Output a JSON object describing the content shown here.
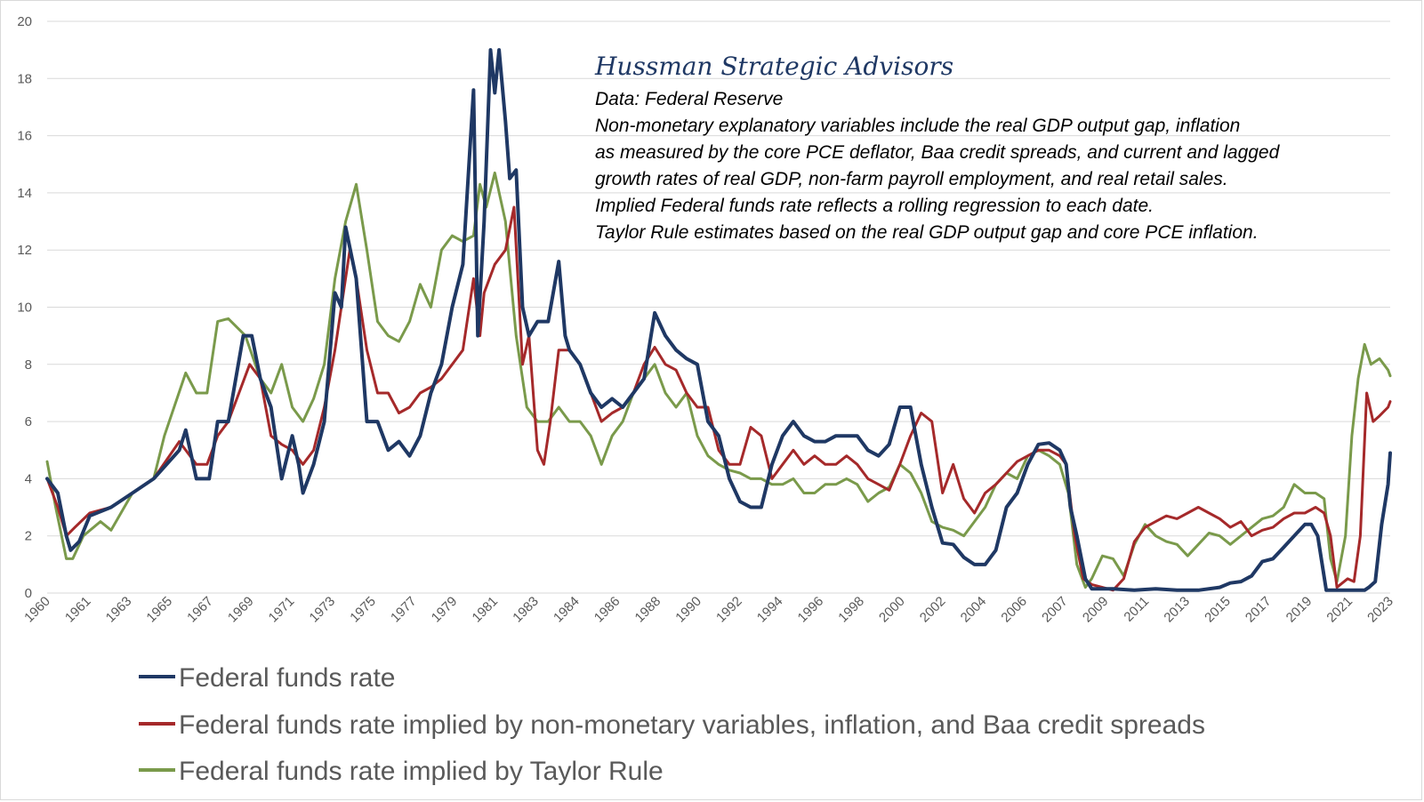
{
  "chart_data": {
    "type": "line",
    "title": "",
    "xlabel": "",
    "ylabel": "",
    "ylim": [
      0,
      20
    ],
    "yticks": [
      0,
      2,
      4,
      6,
      8,
      10,
      12,
      14,
      16,
      18,
      20
    ],
    "xlim": [
      1960,
      2023
    ],
    "xticks": [
      "1960",
      "1961",
      "1963",
      "1965",
      "1967",
      "1969",
      "1971",
      "1973",
      "1975",
      "1977",
      "1979",
      "1981",
      "1983",
      "1984",
      "1986",
      "1988",
      "1990",
      "1992",
      "1994",
      "1996",
      "1998",
      "2000",
      "2002",
      "2004",
      "2006",
      "2007",
      "2009",
      "2011",
      "2013",
      "2015",
      "2017",
      "2019",
      "2021",
      "2023"
    ],
    "grid": true,
    "legend_position": "bottom-left",
    "annotation": {
      "title": "Hussman Strategic Advisors",
      "lines": [
        "Data: Federal Reserve",
        "Non-monetary explanatory variables include the real GDP output gap, inflation",
        "as measured by the core PCE deflator, Baa credit spreads, and current and lagged",
        "growth rates of real GDP, non-farm payroll employment, and real retail sales.",
        "Implied Federal funds rate reflects a rolling regression to each date.",
        "Taylor Rule estimates based on the real GDP output gap and core PCE inflation."
      ]
    },
    "series": [
      {
        "name": "Federal funds rate",
        "color": "#1f3864",
        "x": [
          1960,
          1960.5,
          1960.9,
          1961.1,
          1961.5,
          1962,
          1963,
          1964,
          1965,
          1966.2,
          1966.5,
          1967,
          1967.6,
          1968,
          1968.5,
          1969.2,
          1969.6,
          1970,
          1970.5,
          1971,
          1971.5,
          1971.8,
          1972,
          1972.5,
          1973,
          1973.5,
          1973.8,
          1974,
          1974.5,
          1975,
          1975.5,
          1976,
          1976.5,
          1977,
          1977.5,
          1978,
          1978.5,
          1979,
          1979.5,
          1980,
          1980.2,
          1980.5,
          1980.8,
          1981,
          1981.2,
          1981.5,
          1981.7,
          1982,
          1982.3,
          1982.6,
          1983,
          1983.5,
          1984,
          1984.3,
          1984.5,
          1985,
          1985.5,
          1986,
          1986.5,
          1987,
          1987.5,
          1988,
          1988.5,
          1989,
          1989.5,
          1990,
          1990.5,
          1991,
          1991.5,
          1992,
          1992.5,
          1993,
          1993.5,
          1994,
          1994.5,
          1995,
          1995.5,
          1996,
          1996.5,
          1997,
          1997.5,
          1998,
          1998.5,
          1999,
          1999.5,
          2000,
          2000.5,
          2001,
          2001.5,
          2002,
          2002.5,
          2003,
          2003.5,
          2004,
          2004.5,
          2005,
          2005.5,
          2006,
          2006.5,
          2007,
          2007.5,
          2007.8,
          2008,
          2008.3,
          2008.7,
          2009,
          2010,
          2011,
          2012,
          2013,
          2014,
          2015,
          2015.5,
          2016,
          2016.5,
          2017,
          2017.5,
          2018,
          2018.5,
          2019,
          2019.3,
          2019.6,
          2020,
          2020.2,
          2021,
          2021.5,
          2021.8,
          2022,
          2022.3,
          2022.6,
          2022.9,
          2023
        ],
        "values": [
          4.0,
          3.5,
          2.0,
          1.5,
          1.8,
          2.7,
          3.0,
          3.5,
          4.0,
          5.0,
          5.7,
          4.0,
          4.0,
          6.0,
          6.0,
          9.0,
          9.0,
          7.5,
          6.5,
          4.0,
          5.5,
          4.5,
          3.5,
          4.5,
          6.0,
          10.5,
          10.0,
          12.8,
          11.0,
          6.0,
          6.0,
          5.0,
          5.3,
          4.8,
          5.5,
          7.0,
          8.0,
          10.0,
          11.5,
          17.6,
          9.0,
          13.0,
          19.0,
          17.5,
          19.0,
          16.5,
          14.5,
          14.8,
          10.0,
          9.0,
          9.5,
          9.5,
          11.6,
          9.0,
          8.5,
          8.0,
          7.0,
          6.5,
          6.8,
          6.5,
          7.0,
          7.5,
          9.8,
          9.0,
          8.5,
          8.2,
          8.0,
          6.0,
          5.5,
          4.0,
          3.2,
          3.0,
          3.0,
          4.5,
          5.5,
          6.0,
          5.5,
          5.3,
          5.3,
          5.5,
          5.5,
          5.5,
          5.0,
          4.8,
          5.2,
          6.5,
          6.5,
          4.5,
          3.0,
          1.75,
          1.7,
          1.25,
          1.0,
          1.0,
          1.5,
          3.0,
          3.5,
          4.5,
          5.2,
          5.25,
          5.0,
          4.5,
          3.0,
          2.0,
          0.5,
          0.15,
          0.15,
          0.1,
          0.15,
          0.1,
          0.1,
          0.2,
          0.35,
          0.4,
          0.6,
          1.1,
          1.2,
          1.6,
          2.0,
          2.4,
          2.4,
          2.0,
          0.1,
          0.1,
          0.1,
          0.1,
          0.1,
          0.2,
          0.4,
          2.4,
          3.8,
          4.9
        ]
      },
      {
        "name": "Federal funds rate implied by non-monetary variables, inflation, and Baa credit spreads",
        "color": "#a5292a",
        "x": [
          1960,
          1960.5,
          1960.9,
          1961.3,
          1962,
          1963,
          1964,
          1965,
          1966.2,
          1967,
          1967.5,
          1968,
          1968.5,
          1969.5,
          1970,
          1970.5,
          1971,
          1971.5,
          1972,
          1972.5,
          1973,
          1973.5,
          1974.2,
          1974.5,
          1975,
          1975.5,
          1976,
          1976.5,
          1977,
          1977.5,
          1978,
          1978.5,
          1979,
          1979.5,
          1980,
          1980.3,
          1980.5,
          1981,
          1981.5,
          1981.9,
          1982.3,
          1982.6,
          1983,
          1983.3,
          1983.6,
          1984,
          1984.5,
          1985,
          1985.5,
          1986,
          1986.5,
          1987,
          1987.5,
          1988,
          1988.5,
          1989,
          1989.5,
          1990,
          1990.5,
          1991,
          1991.5,
          1992,
          1992.5,
          1993,
          1993.5,
          1994,
          1994.5,
          1995,
          1995.5,
          1996,
          1996.5,
          1997,
          1997.5,
          1998,
          1998.5,
          1999,
          1999.5,
          2000,
          2000.5,
          2001,
          2001.5,
          2002,
          2002.5,
          2003,
          2003.5,
          2004,
          2004.5,
          2005,
          2005.5,
          2006,
          2006.5,
          2007,
          2007.5,
          2007.8,
          2008.2,
          2008.6,
          2009,
          2009.5,
          2010,
          2010.5,
          2011,
          2011.5,
          2012,
          2012.5,
          2013,
          2013.5,
          2014,
          2014.5,
          2015,
          2015.5,
          2016,
          2016.5,
          2017,
          2017.5,
          2018,
          2018.5,
          2019,
          2019.5,
          2019.9,
          2020.2,
          2020.5,
          2021,
          2021.3,
          2021.6,
          2021.9,
          2022.2,
          2022.5,
          2022.9,
          2023
        ],
        "values": [
          4.0,
          3.0,
          2.0,
          2.3,
          2.8,
          3.0,
          3.5,
          4.0,
          5.3,
          4.5,
          4.5,
          5.5,
          6.0,
          8.0,
          7.5,
          5.5,
          5.2,
          5.0,
          4.5,
          5.0,
          6.5,
          8.5,
          12.0,
          11.0,
          8.5,
          7.0,
          7.0,
          6.3,
          6.5,
          7.0,
          7.2,
          7.5,
          8.0,
          8.5,
          11.0,
          9.0,
          10.5,
          11.5,
          12.0,
          13.5,
          8.0,
          9.0,
          5.0,
          4.5,
          6.0,
          8.5,
          8.5,
          8.0,
          7.0,
          6.0,
          6.3,
          6.5,
          7.0,
          8.0,
          8.6,
          8.0,
          7.8,
          7.0,
          6.5,
          6.5,
          5.0,
          4.5,
          4.5,
          5.8,
          5.5,
          4.0,
          4.5,
          5.0,
          4.5,
          4.8,
          4.5,
          4.5,
          4.8,
          4.5,
          4.0,
          3.8,
          3.6,
          4.5,
          5.5,
          6.3,
          6.0,
          3.5,
          4.5,
          3.3,
          2.8,
          3.5,
          3.8,
          4.2,
          4.6,
          4.8,
          5.0,
          5.0,
          4.8,
          4.5,
          2.0,
          0.5,
          0.3,
          0.2,
          0.1,
          0.5,
          1.8,
          2.3,
          2.5,
          2.7,
          2.6,
          2.8,
          3.0,
          2.8,
          2.6,
          2.3,
          2.5,
          2.0,
          2.2,
          2.3,
          2.6,
          2.8,
          2.8,
          3.0,
          2.8,
          2.0,
          0.2,
          0.5,
          0.4,
          2.0,
          7.0,
          6.0,
          6.2,
          6.5,
          6.7
        ]
      },
      {
        "name": "Federal funds rate implied by Taylor Rule",
        "color": "#7a9a4b",
        "x": [
          1960,
          1960.4,
          1960.9,
          1961.2,
          1961.7,
          1962.5,
          1963,
          1964,
          1965,
          1965.5,
          1966.5,
          1967,
          1967.5,
          1968,
          1968.5,
          1969.3,
          1970,
          1970.5,
          1971,
          1971.5,
          1972,
          1972.5,
          1973,
          1973.5,
          1974,
          1974.5,
          1975,
          1975.5,
          1976,
          1976.5,
          1977,
          1977.5,
          1978,
          1978.5,
          1979,
          1979.5,
          1980,
          1980.3,
          1980.6,
          1981,
          1981.5,
          1982,
          1982.5,
          1983,
          1983.5,
          1984,
          1984.5,
          1985,
          1985.5,
          1986,
          1986.5,
          1987,
          1987.5,
          1988,
          1988.5,
          1989,
          1989.5,
          1990,
          1990.5,
          1991,
          1991.5,
          1992,
          1992.5,
          1993,
          1993.5,
          1994,
          1994.5,
          1995,
          1995.5,
          1996,
          1996.5,
          1997,
          1997.5,
          1998,
          1998.5,
          1999,
          1999.5,
          2000,
          2000.5,
          2001,
          2001.5,
          2002,
          2002.5,
          2003,
          2003.5,
          2004,
          2004.5,
          2005,
          2005.5,
          2006,
          2006.5,
          2007,
          2007.5,
          2007.9,
          2008.3,
          2008.7,
          2009,
          2009.5,
          2010,
          2010.5,
          2011,
          2011.5,
          2012,
          2012.5,
          2013,
          2013.5,
          2014,
          2014.5,
          2015,
          2015.5,
          2016,
          2016.5,
          2017,
          2017.5,
          2018,
          2018.5,
          2019,
          2019.5,
          2019.9,
          2020.2,
          2020.5,
          2020.9,
          2021.2,
          2021.5,
          2021.8,
          2022.1,
          2022.5,
          2022.9,
          2023
        ],
        "values": [
          4.6,
          3.0,
          1.2,
          1.2,
          2.0,
          2.5,
          2.2,
          3.5,
          4.0,
          5.5,
          7.7,
          7.0,
          7.0,
          9.5,
          9.6,
          9.0,
          7.5,
          7.0,
          8.0,
          6.5,
          6.0,
          6.8,
          8.0,
          11.0,
          13.0,
          14.3,
          12.0,
          9.5,
          9.0,
          8.8,
          9.5,
          10.8,
          10.0,
          12.0,
          12.5,
          12.3,
          12.5,
          14.3,
          13.5,
          14.7,
          13.0,
          9.0,
          6.5,
          6.0,
          6.0,
          6.5,
          6.0,
          6.0,
          5.5,
          4.5,
          5.5,
          6.0,
          7.0,
          7.5,
          8.0,
          7.0,
          6.5,
          7.0,
          5.5,
          4.8,
          4.5,
          4.3,
          4.2,
          4.0,
          4.0,
          3.8,
          3.8,
          4.0,
          3.5,
          3.5,
          3.8,
          3.8,
          4.0,
          3.8,
          3.2,
          3.5,
          3.7,
          4.5,
          4.2,
          3.5,
          2.5,
          2.3,
          2.2,
          2.0,
          2.5,
          3.0,
          3.8,
          4.2,
          4.0,
          4.8,
          5.0,
          4.8,
          4.5,
          3.5,
          1.0,
          0.2,
          0.5,
          1.3,
          1.2,
          0.6,
          1.7,
          2.4,
          2.0,
          1.8,
          1.7,
          1.3,
          1.7,
          2.1,
          2.0,
          1.7,
          2.0,
          2.3,
          2.6,
          2.7,
          3.0,
          3.8,
          3.5,
          3.5,
          3.3,
          1.2,
          0.4,
          2.0,
          5.5,
          7.5,
          8.7,
          8.0,
          8.2,
          7.8,
          7.6
        ]
      }
    ]
  }
}
